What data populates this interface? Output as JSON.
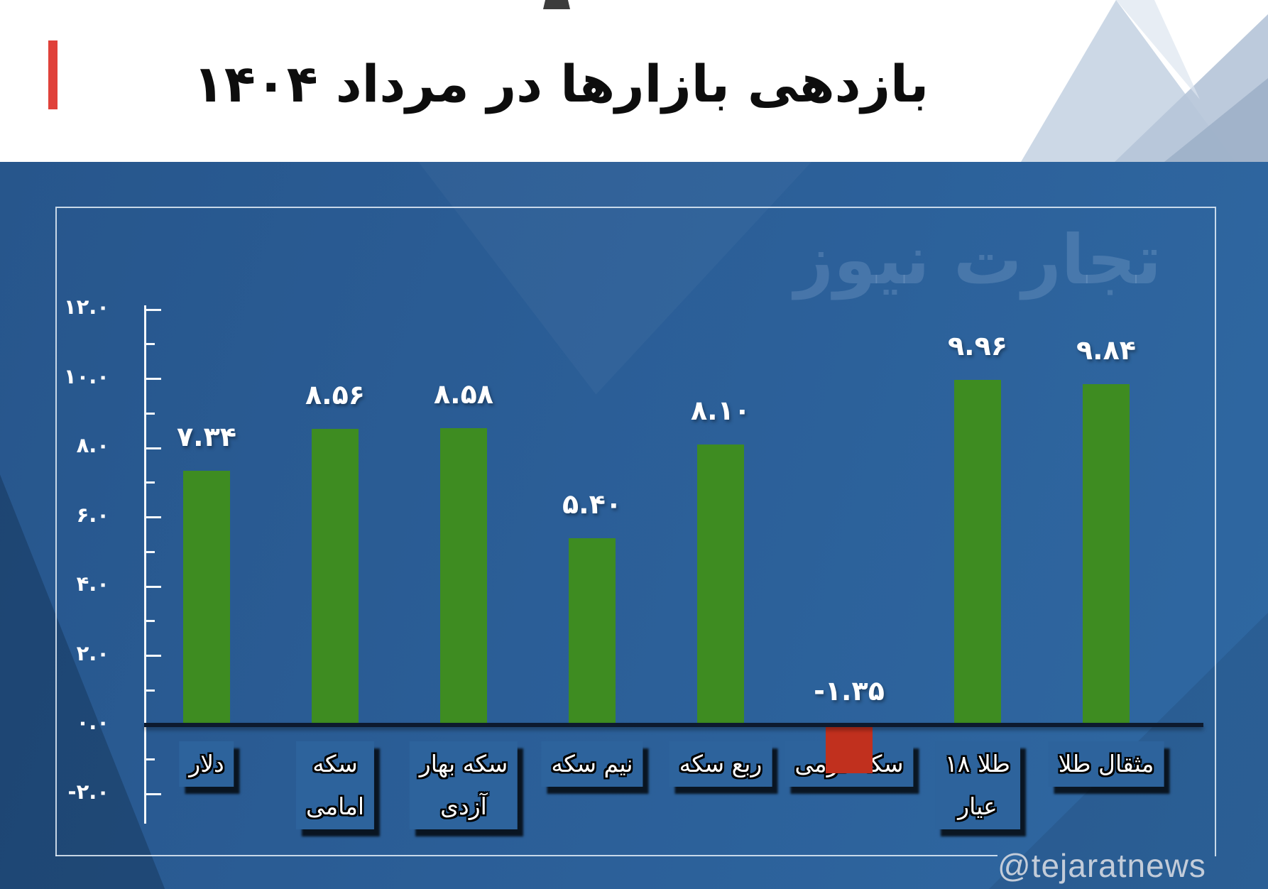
{
  "page": {
    "title": "بازدهی بازارها در مرداد ۱۴۰۴",
    "watermark": "تجارت نیوز",
    "handle": "@tejaratnews"
  },
  "colors": {
    "accent_red": "#e0413a",
    "bar_positive": "#3e8c21",
    "bar_negative": "#c1301e",
    "band_blue": "#2b5e97",
    "label_box_blue": "#2d639c",
    "axis_white": "#f4f8fc",
    "baseline_dark": "#0d1a2e"
  },
  "chart_data": {
    "type": "bar",
    "title": "بازدهی بازارها در مرداد ۱۴۰۴",
    "categories": [
      "دلار",
      "سکه امامی",
      "سکه بهار آزدی",
      "نیم سکه",
      "ربع سکه",
      "سکه گرمی",
      "طلا ۱۸ عیار",
      "مثقال طلا"
    ],
    "category_lines": [
      [
        "دلار"
      ],
      [
        "سکه",
        "امامی"
      ],
      [
        "سکه بهار",
        "آزدی"
      ],
      [
        "نیم سکه"
      ],
      [
        "ربع سکه"
      ],
      [
        "سکه گرمی"
      ],
      [
        "طلا ۱۸",
        "عیار"
      ],
      [
        "مثقال طلا"
      ]
    ],
    "values": [
      7.34,
      8.56,
      8.58,
      5.4,
      8.1,
      -1.35,
      9.96,
      9.84
    ],
    "value_labels": [
      "۷.۳۴",
      "۸.۵۶",
      "۸.۵۸",
      "۵.۴۰",
      "۸.۱۰",
      "-۱.۳۵",
      "۹.۹۶",
      "۹.۸۴"
    ],
    "ytick_values": [
      12,
      10,
      8,
      6,
      4,
      2,
      0,
      -2
    ],
    "ytick_labels": [
      "۱۲.۰",
      "۱۰.۰",
      "۸.۰",
      "۶.۰",
      "۴.۰",
      "۲.۰",
      "۰.۰",
      "-۲.۰"
    ],
    "ylim": [
      -2,
      12
    ],
    "grid": false,
    "legend": null
  }
}
